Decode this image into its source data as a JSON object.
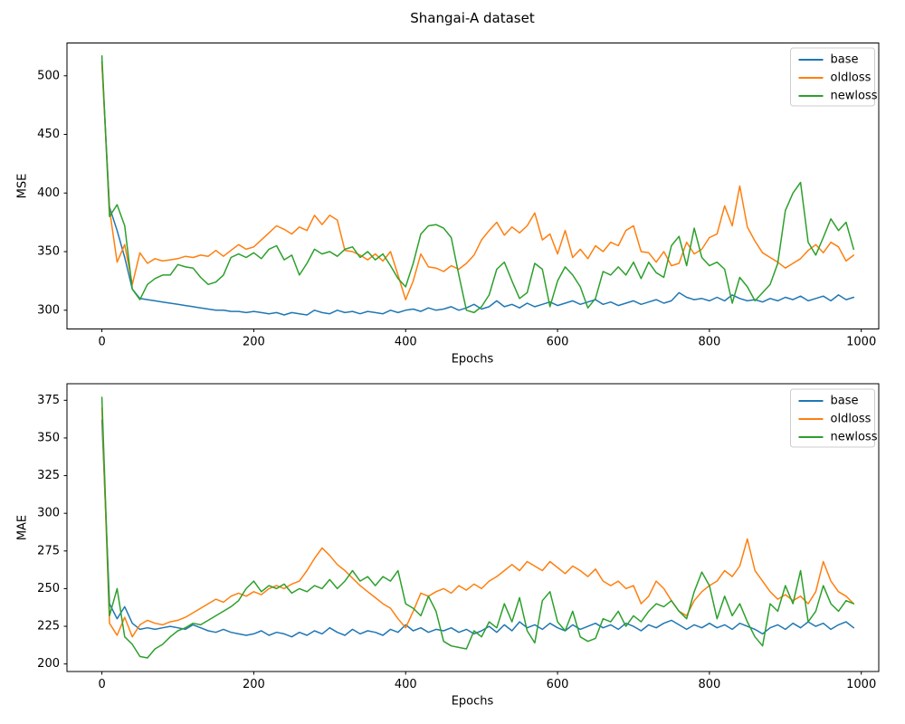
{
  "figure": {
    "title": "Shangai-A dataset"
  },
  "chart_data": [
    {
      "type": "line",
      "ylabel": "MSE",
      "xlabel": "Epochs",
      "legend_position": "upper right",
      "grid": false,
      "xlim": [
        -46,
        1023
      ],
      "ylim": [
        284,
        528
      ],
      "xticks": [
        0,
        200,
        400,
        600,
        800,
        1000
      ],
      "yticks": [
        300,
        350,
        400,
        450,
        500
      ],
      "x": [
        0,
        10,
        20,
        30,
        40,
        50,
        60,
        70,
        80,
        90,
        100,
        110,
        120,
        130,
        140,
        150,
        160,
        170,
        180,
        190,
        200,
        210,
        220,
        230,
        240,
        250,
        260,
        270,
        280,
        290,
        300,
        310,
        320,
        330,
        340,
        350,
        360,
        370,
        380,
        390,
        400,
        410,
        420,
        430,
        440,
        450,
        460,
        470,
        480,
        490,
        500,
        510,
        520,
        530,
        540,
        550,
        560,
        570,
        580,
        590,
        600,
        610,
        620,
        630,
        640,
        650,
        660,
        670,
        680,
        690,
        700,
        710,
        720,
        730,
        740,
        750,
        760,
        770,
        780,
        790,
        800,
        810,
        820,
        830,
        840,
        850,
        860,
        870,
        880,
        890,
        900,
        910,
        920,
        930,
        940,
        950,
        960,
        970,
        980,
        990
      ],
      "series": [
        {
          "name": "base",
          "color": "#1f77b4",
          "values": [
            512,
            388,
            368,
            345,
            318,
            310,
            309,
            308,
            307,
            306,
            305,
            304,
            303,
            302,
            301,
            300,
            300,
            299,
            299,
            298,
            299,
            298,
            297,
            298,
            296,
            298,
            297,
            296,
            300,
            298,
            297,
            300,
            298,
            299,
            297,
            299,
            298,
            297,
            300,
            298,
            300,
            301,
            299,
            302,
            300,
            301,
            303,
            300,
            302,
            305,
            301,
            303,
            308,
            303,
            305,
            302,
            306,
            303,
            305,
            307,
            304,
            306,
            308,
            305,
            307,
            309,
            305,
            307,
            304,
            306,
            308,
            305,
            307,
            309,
            306,
            308,
            315,
            311,
            309,
            310,
            308,
            311,
            308,
            313,
            310,
            308,
            309,
            307,
            310,
            308,
            311,
            309,
            312,
            308,
            310,
            312,
            308,
            313,
            309,
            311
          ]
        },
        {
          "name": "oldloss",
          "color": "#ff7f0e",
          "values": [
            510,
            386,
            341,
            356,
            322,
            349,
            340,
            344,
            342,
            343,
            344,
            346,
            345,
            347,
            346,
            351,
            346,
            351,
            356,
            352,
            354,
            360,
            366,
            372,
            369,
            365,
            371,
            368,
            381,
            373,
            381,
            377,
            351,
            350,
            347,
            343,
            348,
            342,
            350,
            330,
            309,
            325,
            348,
            337,
            336,
            333,
            338,
            335,
            340,
            347,
            360,
            368,
            375,
            364,
            371,
            366,
            372,
            383,
            360,
            365,
            348,
            368,
            345,
            352,
            344,
            355,
            350,
            358,
            355,
            368,
            372,
            350,
            349,
            341,
            350,
            338,
            340,
            358,
            348,
            352,
            362,
            365,
            389,
            372,
            406,
            371,
            359,
            349,
            345,
            341,
            336,
            340,
            344,
            351,
            356,
            349,
            358,
            354,
            342,
            347
          ]
        },
        {
          "name": "newloss",
          "color": "#2ca02c",
          "values": [
            517,
            380,
            390,
            372,
            318,
            309,
            322,
            327,
            330,
            330,
            339,
            337,
            336,
            328,
            322,
            324,
            330,
            345,
            348,
            345,
            349,
            344,
            352,
            355,
            343,
            347,
            330,
            340,
            352,
            348,
            350,
            346,
            352,
            354,
            345,
            350,
            343,
            348,
            338,
            327,
            320,
            340,
            365,
            372,
            373,
            370,
            362,
            330,
            300,
            298,
            303,
            313,
            335,
            341,
            325,
            310,
            315,
            340,
            335,
            303,
            325,
            337,
            330,
            320,
            302,
            310,
            333,
            330,
            337,
            330,
            341,
            327,
            341,
            332,
            328,
            355,
            363,
            338,
            370,
            345,
            338,
            341,
            335,
            306,
            328,
            320,
            308,
            315,
            322,
            340,
            385,
            400,
            409,
            358,
            347,
            362,
            378,
            368,
            375,
            352
          ]
        }
      ]
    },
    {
      "type": "line",
      "ylabel": "MAE",
      "xlabel": "Epochs",
      "legend_position": "upper right",
      "grid": false,
      "xlim": [
        -46,
        1023
      ],
      "ylim": [
        195,
        386
      ],
      "xticks": [
        0,
        200,
        400,
        600,
        800,
        1000
      ],
      "yticks": [
        200,
        225,
        250,
        275,
        300,
        325,
        350,
        375
      ],
      "x": [
        0,
        10,
        20,
        30,
        40,
        50,
        60,
        70,
        80,
        90,
        100,
        110,
        120,
        130,
        140,
        150,
        160,
        170,
        180,
        190,
        200,
        210,
        220,
        230,
        240,
        250,
        260,
        270,
        280,
        290,
        300,
        310,
        320,
        330,
        340,
        350,
        360,
        370,
        380,
        390,
        400,
        410,
        420,
        430,
        440,
        450,
        460,
        470,
        480,
        490,
        500,
        510,
        520,
        530,
        540,
        550,
        560,
        570,
        580,
        590,
        600,
        610,
        620,
        630,
        640,
        650,
        660,
        670,
        680,
        690,
        700,
        710,
        720,
        730,
        740,
        750,
        760,
        770,
        780,
        790,
        800,
        810,
        820,
        830,
        840,
        850,
        860,
        870,
        880,
        890,
        900,
        910,
        920,
        930,
        940,
        950,
        960,
        970,
        980,
        990
      ],
      "series": [
        {
          "name": "base",
          "color": "#1f77b4",
          "values": [
            362,
            240,
            230,
            238,
            227,
            223,
            224,
            223,
            224,
            225,
            224,
            223,
            226,
            224,
            222,
            221,
            223,
            221,
            220,
            219,
            220,
            222,
            219,
            221,
            220,
            218,
            221,
            219,
            222,
            220,
            224,
            221,
            219,
            223,
            220,
            222,
            221,
            219,
            223,
            221,
            226,
            222,
            224,
            221,
            223,
            222,
            224,
            221,
            223,
            220,
            222,
            225,
            221,
            226,
            222,
            228,
            224,
            226,
            223,
            227,
            224,
            222,
            226,
            223,
            225,
            227,
            224,
            226,
            223,
            227,
            225,
            222,
            226,
            224,
            227,
            229,
            226,
            223,
            226,
            224,
            227,
            224,
            226,
            223,
            227,
            225,
            223,
            220,
            224,
            226,
            223,
            227,
            224,
            228,
            225,
            227,
            223,
            226,
            228,
            224
          ]
        },
        {
          "name": "oldloss",
          "color": "#ff7f0e",
          "values": [
            370,
            227,
            219,
            231,
            218,
            226,
            229,
            227,
            226,
            228,
            229,
            231,
            234,
            237,
            240,
            243,
            241,
            245,
            247,
            245,
            248,
            246,
            250,
            252,
            250,
            253,
            255,
            262,
            270,
            277,
            272,
            266,
            262,
            257,
            252,
            248,
            244,
            240,
            237,
            230,
            224,
            235,
            247,
            245,
            248,
            250,
            247,
            252,
            249,
            253,
            250,
            255,
            258,
            262,
            266,
            262,
            268,
            265,
            262,
            268,
            264,
            260,
            265,
            262,
            258,
            263,
            255,
            252,
            255,
            250,
            252,
            240,
            245,
            255,
            250,
            242,
            235,
            232,
            242,
            248,
            252,
            255,
            262,
            258,
            265,
            283,
            262,
            255,
            248,
            243,
            246,
            242,
            245,
            240,
            248,
            268,
            255,
            248,
            245,
            240
          ]
        },
        {
          "name": "newloss",
          "color": "#2ca02c",
          "values": [
            377,
            232,
            250,
            218,
            213,
            205,
            204,
            210,
            213,
            218,
            222,
            224,
            227,
            226,
            229,
            232,
            235,
            238,
            242,
            250,
            255,
            248,
            252,
            250,
            253,
            247,
            250,
            248,
            252,
            250,
            256,
            250,
            255,
            262,
            255,
            258,
            252,
            258,
            255,
            262,
            240,
            237,
            232,
            245,
            235,
            215,
            212,
            211,
            210,
            222,
            218,
            228,
            224,
            240,
            228,
            244,
            222,
            214,
            242,
            248,
            228,
            222,
            235,
            218,
            215,
            217,
            230,
            228,
            235,
            225,
            232,
            228,
            235,
            240,
            238,
            242,
            235,
            230,
            248,
            261,
            252,
            230,
            245,
            232,
            240,
            228,
            218,
            212,
            240,
            235,
            252,
            240,
            262,
            228,
            235,
            252,
            240,
            235,
            242,
            240
          ]
        }
      ]
    }
  ]
}
